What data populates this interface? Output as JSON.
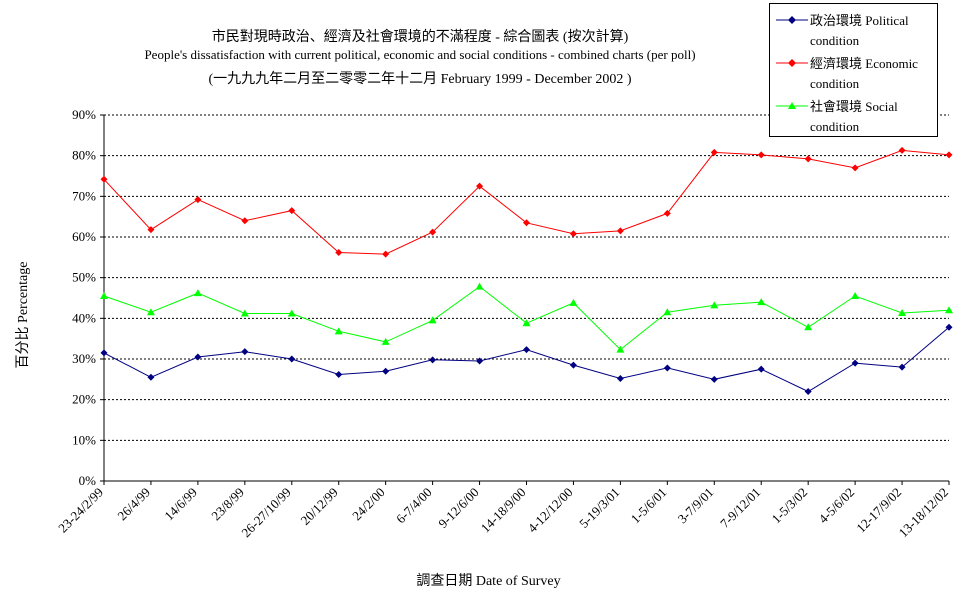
{
  "chart_data": {
    "type": "line",
    "title": "市民對現時政治、經濟及社會環境的不滿程度 - 綜合圖表 (按次計算)",
    "subtitle": "People's dissatisfaction with current political, economic and social conditions - combined charts  (per poll)",
    "subtitle2": "(一九九九年二月至二零零二年十二月 February 1999 - December 2002 )",
    "xlabel": "調查日期 Date of Survey",
    "ylabel": "百分比 Percentage",
    "ylim": [
      0,
      90
    ],
    "yticks": [
      "0%",
      "10%",
      "20%",
      "30%",
      "40%",
      "50%",
      "60%",
      "70%",
      "80%",
      "90%"
    ],
    "grid": "horizontal dashed",
    "legend_position": "top-right",
    "categories": [
      "23-24/2/99",
      "26/4/99",
      "14/6/99",
      "23/8/99",
      "26-27/10/99",
      "20/12/99",
      "24/2/00",
      "6-7/4/00",
      "9-12/6/00",
      "14-18/9/00",
      "4-12/12/00",
      "5-19/3/01",
      "1-5/6/01",
      "3-7/9/01",
      "7-9/12/01",
      "1-5/3/02",
      "4-5/6/02",
      "12-17/9/02",
      "13-18/12/02"
    ],
    "series": [
      {
        "name": "政治環境 Political condition",
        "color": "#000080",
        "marker": "diamond",
        "values": [
          31.5,
          25.5,
          30.5,
          31.8,
          30,
          26.2,
          27,
          29.8,
          29.5,
          32.3,
          28.5,
          25.2,
          27.8,
          25,
          27.5,
          22,
          29,
          28,
          37.8
        ]
      },
      {
        "name": "經濟環境 Economic condition",
        "color": "#ff0000",
        "marker": "diamond",
        "values": [
          74.2,
          61.8,
          69.2,
          64,
          66.5,
          56.2,
          55.8,
          61.2,
          72.5,
          63.5,
          60.8,
          61.5,
          65.8,
          80.8,
          80.2,
          79.2,
          77,
          81.3,
          80.2
        ]
      },
      {
        "name": "社會環境 Social condition",
        "color": "#00ff00",
        "marker": "triangle",
        "values": [
          45.5,
          41.5,
          46.2,
          41.2,
          41.2,
          36.8,
          34.2,
          39.5,
          47.8,
          38.8,
          43.8,
          32.3,
          41.5,
          43.2,
          44,
          37.8,
          45.5,
          41.3,
          42
        ]
      }
    ]
  }
}
